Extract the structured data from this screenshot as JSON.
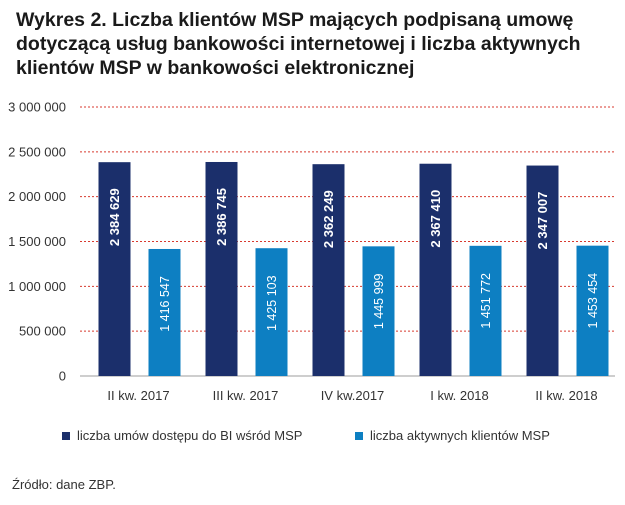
{
  "title": "Wykres 2. Liczba klientów MSP mających podpisaną umowę dotyczącą usług bankowości internetowej i liczba aktywnych klientów MSP w bankowości elektronicznej",
  "source": "Źródło: dane ZBP.",
  "colors": {
    "series1": "#1b2f6b",
    "series2": "#0d7fc2",
    "grid": "#d83a2f",
    "axis": "#9e9e9e"
  },
  "chart_data": {
    "type": "bar",
    "title": "Wykres 2. Liczba klientów MSP mających podpisaną umowę dotyczącą usług bankowości internetowej i liczba aktywnych klientów MSP w bankowości elektronicznej",
    "xlabel": "",
    "ylabel": "",
    "ylim": [
      0,
      3000000
    ],
    "yticks": [
      0,
      500000,
      1000000,
      1500000,
      2000000,
      2500000,
      3000000
    ],
    "ytick_labels": [
      "0",
      "500 000",
      "1 000 000",
      "1 500 000",
      "2 000 000",
      "2 500 000",
      "3 000 000"
    ],
    "grid": true,
    "legend_position": "bottom",
    "categories": [
      "II kw. 2017",
      "III kw. 2017",
      "IV kw.2017",
      "I kw. 2018",
      "II  kw. 2018"
    ],
    "series": [
      {
        "name": "liczba umów dostępu do BI wśród MSP",
        "values": [
          2384629,
          2386745,
          2362249,
          2367410,
          2347007
        ],
        "labels": [
          "2 384 629",
          "2 386 745",
          "2 362 249",
          "2 367 410",
          "2 347 007"
        ]
      },
      {
        "name": "liczba aktywnych klientów MSP",
        "values": [
          1416547,
          1425103,
          1445999,
          1451772,
          1453454
        ],
        "labels": [
          "1 416 547",
          "1 425 103",
          "1 445 999",
          "1 451 772",
          "1 453 454"
        ]
      }
    ]
  }
}
